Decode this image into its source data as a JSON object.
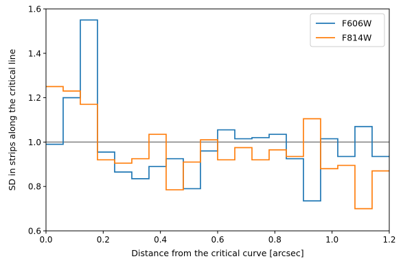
{
  "chart_data": {
    "type": "line",
    "step": true,
    "title": "",
    "xlabel": "Distance from the critical curve [arcsec]",
    "ylabel": "SD in strips along the critical line",
    "xlim": [
      0.0,
      1.2
    ],
    "ylim": [
      0.6,
      1.6
    ],
    "xticks": [
      "0.0",
      "0.2",
      "0.4",
      "0.6",
      "0.8",
      "1.0",
      "1.2"
    ],
    "yticks": [
      "0.6",
      "0.8",
      "1.0",
      "1.2",
      "1.4",
      "1.6"
    ],
    "grid": false,
    "legend_position": "top-right",
    "reference_line": {
      "y": 1.0,
      "color": "#808080"
    },
    "bin_edges": [
      0.0,
      0.06,
      0.12,
      0.18,
      0.24,
      0.3,
      0.36,
      0.42,
      0.48,
      0.54,
      0.6,
      0.66,
      0.72,
      0.78,
      0.84,
      0.9,
      0.96,
      1.02,
      1.08,
      1.14,
      1.2
    ],
    "series": [
      {
        "name": "F606W",
        "color": "#1f77b4",
        "values": [
          0.99,
          1.2,
          1.55,
          0.955,
          0.865,
          0.835,
          0.89,
          0.925,
          0.79,
          0.96,
          1.055,
          1.015,
          1.02,
          1.035,
          0.925,
          0.735,
          1.015,
          0.935,
          1.07,
          0.935
        ]
      },
      {
        "name": "F814W",
        "color": "#ff7f0e",
        "values": [
          1.25,
          1.23,
          1.17,
          0.92,
          0.905,
          0.925,
          1.035,
          0.785,
          0.91,
          1.01,
          0.92,
          0.975,
          0.92,
          0.965,
          0.935,
          1.105,
          0.88,
          0.895,
          0.7,
          0.87
        ]
      }
    ]
  }
}
